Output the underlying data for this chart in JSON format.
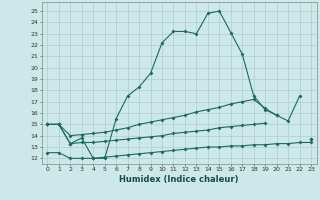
{
  "xlabel": "Humidex (Indice chaleur)",
  "background_color": "#cce8e8",
  "grid_color": "#b0cccc",
  "line_color": "#1a6b5a",
  "xlim": [
    -0.5,
    23.5
  ],
  "ylim": [
    11.5,
    25.8
  ],
  "yticks": [
    12,
    13,
    14,
    15,
    16,
    17,
    18,
    19,
    20,
    21,
    22,
    23,
    24,
    25
  ],
  "xticks": [
    0,
    1,
    2,
    3,
    4,
    5,
    6,
    7,
    8,
    9,
    10,
    11,
    12,
    13,
    14,
    15,
    16,
    17,
    18,
    19,
    20,
    21,
    22,
    23
  ],
  "series": [
    {
      "x": [
        0,
        1,
        2,
        3,
        4,
        5,
        6,
        7,
        8,
        9,
        10,
        11,
        12,
        13,
        14,
        15,
        16,
        17,
        18,
        19,
        20,
        21,
        22
      ],
      "y": [
        15.0,
        15.0,
        13.3,
        13.8,
        12.0,
        12.0,
        15.5,
        17.5,
        18.3,
        19.5,
        22.2,
        23.2,
        23.2,
        23.0,
        24.8,
        25.0,
        23.1,
        21.2,
        17.5,
        16.3,
        15.8,
        15.3,
        17.5
      ]
    },
    {
      "x": [
        0,
        1,
        2,
        3,
        4,
        5,
        6,
        7,
        8,
        9,
        10,
        11,
        12,
        13,
        14,
        15,
        16,
        17,
        18,
        19,
        20,
        21,
        22,
        23
      ],
      "y": [
        15.0,
        15.0,
        14.0,
        14.1,
        14.2,
        14.3,
        14.5,
        14.7,
        15.0,
        15.2,
        15.4,
        15.6,
        15.8,
        16.1,
        16.3,
        16.5,
        16.8,
        17.0,
        17.2,
        16.4,
        15.8,
        null,
        null,
        13.7
      ]
    },
    {
      "x": [
        0,
        1,
        2,
        3,
        4,
        5,
        6,
        7,
        8,
        9,
        10,
        11,
        12,
        13,
        14,
        15,
        16,
        17,
        18,
        19,
        20,
        21,
        22,
        23
      ],
      "y": [
        15.0,
        15.0,
        13.3,
        13.4,
        13.4,
        13.5,
        13.6,
        13.7,
        13.8,
        13.9,
        14.0,
        14.2,
        14.3,
        14.4,
        14.5,
        14.7,
        14.8,
        14.9,
        15.0,
        15.1,
        null,
        null,
        null,
        13.7
      ]
    },
    {
      "x": [
        0,
        1,
        2,
        3,
        4,
        5,
        6,
        7,
        8,
        9,
        10,
        11,
        12,
        13,
        14,
        15,
        16,
        17,
        18,
        19,
        20,
        21,
        22,
        23
      ],
      "y": [
        12.5,
        12.5,
        12.0,
        12.0,
        12.0,
        12.1,
        12.2,
        12.3,
        12.4,
        12.5,
        12.6,
        12.7,
        12.8,
        12.9,
        13.0,
        13.0,
        13.1,
        13.1,
        13.2,
        13.2,
        13.3,
        13.3,
        13.4,
        13.4
      ]
    }
  ]
}
